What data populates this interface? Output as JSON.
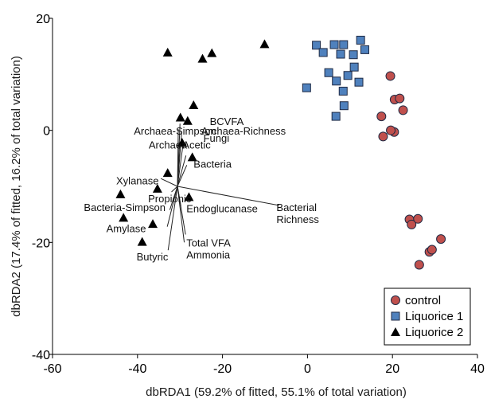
{
  "chart_data": {
    "type": "scatter",
    "xlabel": "dbRDA1 (59.2% of fitted, 55.1% of total variation)",
    "ylabel": "dbRDA2 (17.4% of fitted, 16.2% of total variation)",
    "xlim": [
      -60,
      40
    ],
    "ylim": [
      -40,
      20
    ],
    "xticks": [
      "-60",
      "-40",
      "-20",
      "0",
      "20",
      "40"
    ],
    "yticks": [
      "-40",
      "-20",
      "0",
      "20"
    ],
    "legend_position": "bottom-right",
    "series": [
      {
        "name": "control",
        "marker": "circle",
        "color": "#c0504d",
        "points": [
          [
            19.5,
            9.7
          ],
          [
            20.5,
            5.5
          ],
          [
            21.7,
            5.7
          ],
          [
            22.5,
            3.6
          ],
          [
            17.4,
            2.5
          ],
          [
            20.4,
            -0.3
          ],
          [
            19.6,
            0.0
          ],
          [
            17.8,
            -1.1
          ],
          [
            24.0,
            -15.9
          ],
          [
            24.5,
            -16.8
          ],
          [
            26.0,
            -15.8
          ],
          [
            31.4,
            -19.4
          ],
          [
            28.7,
            -21.7
          ],
          [
            29.3,
            -21.3
          ],
          [
            26.3,
            -24.0
          ]
        ]
      },
      {
        "name": "Liquorice 1",
        "marker": "square",
        "color": "#4f81bd",
        "points": [
          [
            2.1,
            15.2
          ],
          [
            3.7,
            13.9
          ],
          [
            6.3,
            15.3
          ],
          [
            8.5,
            15.3
          ],
          [
            12.5,
            16.1
          ],
          [
            13.5,
            14.4
          ],
          [
            7.8,
            13.6
          ],
          [
            10.8,
            13.5
          ],
          [
            11.0,
            11.3
          ],
          [
            5.0,
            10.3
          ],
          [
            6.8,
            8.8
          ],
          [
            9.5,
            9.8
          ],
          [
            8.4,
            7.0
          ],
          [
            12.1,
            8.6
          ],
          [
            -0.2,
            7.6
          ],
          [
            8.6,
            4.4
          ],
          [
            6.7,
            2.5
          ]
        ]
      },
      {
        "name": "Liquorice 2",
        "marker": "triangle",
        "color": "#000000",
        "points": [
          [
            -32.9,
            13.9
          ],
          [
            -24.7,
            12.8
          ],
          [
            -22.5,
            13.8
          ],
          [
            -10.1,
            15.4
          ],
          [
            -29.9,
            2.3
          ],
          [
            -28.2,
            1.7
          ],
          [
            -26.8,
            4.5
          ],
          [
            -29.5,
            -2.2
          ],
          [
            -27.1,
            -4.8
          ],
          [
            -32.9,
            -7.6
          ],
          [
            -35.3,
            -10.4
          ],
          [
            -44.0,
            -11.4
          ],
          [
            -27.9,
            -11.9
          ],
          [
            -43.3,
            -15.6
          ],
          [
            -36.4,
            -16.7
          ],
          [
            -38.9,
            -19.9
          ]
        ]
      }
    ],
    "vector_origin": [
      -30.6,
      -10.0
    ],
    "vectors": [
      {
        "label": "BCVFA",
        "end": [
          -30.0,
          1.2
        ]
      },
      {
        "label": "Archaea-Simpson",
        "end": [
          -30.4,
          0.2
        ]
      },
      {
        "label": "Archaea-Richness",
        "end": [
          -29.6,
          -0.2
        ]
      },
      {
        "label": "Archaea",
        "end": [
          -30.1,
          -2.5
        ]
      },
      {
        "label": "Acetic",
        "end": [
          -29.3,
          -2.6
        ]
      },
      {
        "label": "Fungi",
        "end": [
          -28.6,
          -4.5
        ]
      },
      {
        "label": "Bacteria",
        "end": [
          -28.4,
          -6.2
        ]
      },
      {
        "label": "Xylanase",
        "end": [
          -34.5,
          -8.6
        ]
      },
      {
        "label": "Propionic",
        "end": [
          -32.0,
          -11.0
        ]
      },
      {
        "label": "Bacteria-Simpson",
        "end": [
          -32.4,
          -14.2
        ]
      },
      {
        "label": "Endoglucanase",
        "end": [
          -29.8,
          -13.5
        ]
      },
      {
        "label": "Bacterial\nRichness",
        "end": [
          -6.7,
          -13.4
        ]
      },
      {
        "label": "Amylase",
        "end": [
          -33.0,
          -17.2
        ]
      },
      {
        "label": "Butyric",
        "end": [
          -32.8,
          -21.4
        ]
      },
      {
        "label": "Total VFA",
        "end": [
          -28.7,
          -18.6
        ]
      },
      {
        "label": "Ammonia",
        "end": [
          -29.0,
          -20.0
        ]
      }
    ]
  },
  "vector_labels": [
    {
      "text": "BCVFA",
      "x": -19.0,
      "y": 1.6,
      "anchor": "middle"
    },
    {
      "text": "Archaea-Simpson",
      "x": -21.5,
      "y": -0.1,
      "anchor": "end"
    },
    {
      "text": "Archaea-Richness",
      "x": -25.0,
      "y": -0.1,
      "anchor": "start"
    },
    {
      "text": "Archaea",
      "x": -28.3,
      "y": -2.6,
      "anchor": "end"
    },
    {
      "text": "Acetic",
      "x": -29.4,
      "y": -2.6,
      "anchor": "start"
    },
    {
      "text": "Fungi",
      "x": -24.5,
      "y": -1.4,
      "anchor": "start"
    },
    {
      "text": "Bacteria",
      "x": -26.8,
      "y": -6.0,
      "anchor": "start"
    },
    {
      "text": "Xylanase",
      "x": -35.0,
      "y": -9.0,
      "anchor": "end"
    },
    {
      "text": "Propionic",
      "x": -37.5,
      "y": -12.2,
      "anchor": "start"
    },
    {
      "text": "Bacteria-Simpson",
      "x": -33.4,
      "y": -13.8,
      "anchor": "end"
    },
    {
      "text": "Endoglucanase",
      "x": -28.5,
      "y": -14.0,
      "anchor": "start"
    },
    {
      "text": "Bacterial",
      "x": -7.3,
      "y": -13.8,
      "anchor": "start"
    },
    {
      "text": "Richness",
      "x": -7.3,
      "y": -15.9,
      "anchor": "start"
    },
    {
      "text": "Amylase",
      "x": -38.0,
      "y": -17.5,
      "anchor": "end"
    },
    {
      "text": "Butyric",
      "x": -36.5,
      "y": -22.6,
      "anchor": "middle"
    },
    {
      "text": "Total VFA",
      "x": -28.5,
      "y": -20.1,
      "anchor": "start"
    },
    {
      "text": "Ammonia",
      "x": -28.5,
      "y": -22.2,
      "anchor": "start"
    }
  ],
  "colors": {
    "control": "#c0504d",
    "liquorice1": "#4f81bd",
    "liquorice2": "#000000",
    "marker_stroke": "#1f2a44"
  }
}
